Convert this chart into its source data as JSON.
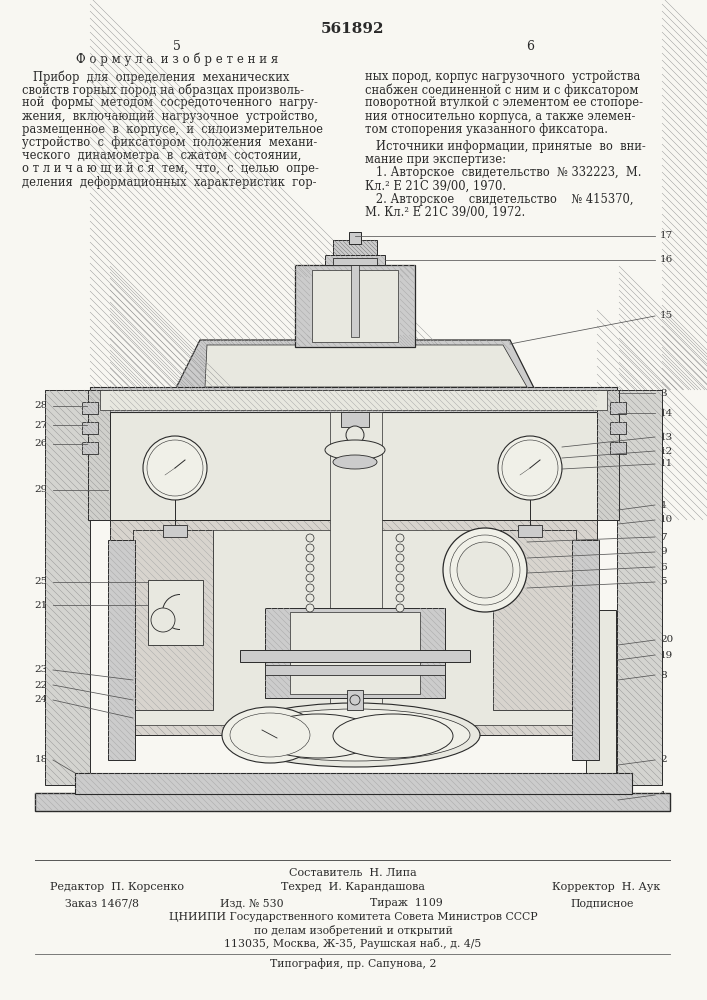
{
  "patent_number": "561892",
  "page_left": "5",
  "page_right": "6",
  "section_title": "Ф о р м у л а  и з о б р е т е н и я",
  "left_col_lines": [
    "   Прибор  для  определения  механических",
    "свойств горных пород на образцах произволь-",
    "ной  формы  методом  сосредоточенного  нагру-",
    "жения,  включающий  нагрузочное  устройство,",
    "размещенное  в  корпусе,  и  силоизмерительное",
    "устройство  с  фиксатором  положения  механи-",
    "ческого  динамометра  в  сжатом  состоянии,",
    "о т л и ч а ю щ и й с я  тем,  что,  с  целью  опре-",
    "деления  деформационных  характеристик  гор-"
  ],
  "right_col_lines": [
    "ных пород, корпус нагрузочного  устройства",
    "снабжен соединенной с ним и с фиксатором",
    "поворотной втулкой с элементом ее стопоре-",
    "ния относительно корпуса, а также элемен-",
    "том стопорения указанного фиксатора."
  ],
  "sources_header": "   Источники информации, принятые  во  вни-",
  "sources_sub": "мание при экспертизе:",
  "src1a": "   1. Авторское  свидетельство  № 332223,  М.",
  "src1b": "Кл.² Е 21С 39/00, 1970.",
  "src2a": "   2. Авторское    свидетельство    № 415370,",
  "src2b": "М. Кл.² Е 21С 39/00, 1972.",
  "f_compiler": "Составитель  Н. Липа",
  "f_editor": "Редактор  П. Корсенко",
  "f_tech": "Техред  И. Карандашова",
  "f_corr": "Корректор  Н. Аук",
  "f_order": "Заказ 1467/8",
  "f_izd": "Изд. № 530",
  "f_tirazh": "Тираж  1109",
  "f_podp": "Подписное",
  "f_org": "ЦНИИПИ Государственного комитета Совета Министров СССР",
  "f_dept": "по делам изобретений и открытий",
  "f_addr": "113035, Москва, Ж-35, Раушская наб., д. 4/5",
  "f_print": "Типография, пр. Сапунова, 2",
  "bg": "#f8f7f2",
  "ink": "#2a2a2a",
  "gray1": "#aaaaaa",
  "gray2": "#cccccc",
  "gray3": "#e8e8e0",
  "hatch": "#888888"
}
